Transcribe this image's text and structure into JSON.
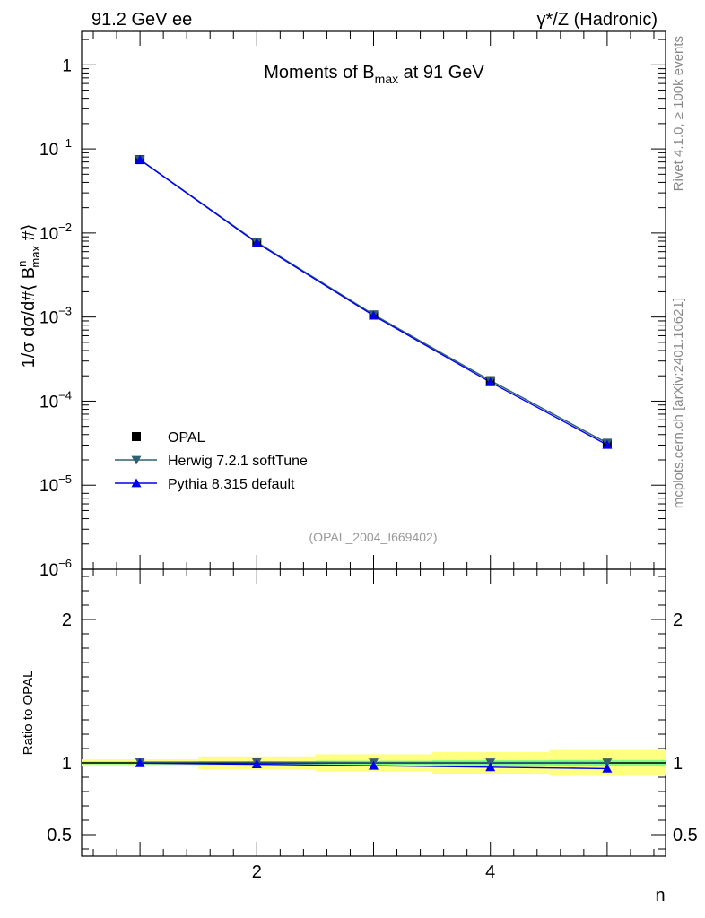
{
  "header": {
    "left": "91.2 GeV ee",
    "right": "γ*/Z (Hadronic)"
  },
  "side_labels": {
    "rivet": "Rivet 4.1.0, ≥ 100k events",
    "mcplots": "mcplots.cern.ch [arXiv:2401.10621]"
  },
  "colors": {
    "data": "#000000",
    "herwig": "#2e6070",
    "pythia": "#0000ee",
    "band_inner": "#7fff7f",
    "band_outer": "#ffff80"
  },
  "chart_data": [
    {
      "type": "line",
      "panel": "main",
      "title_parts": {
        "pre": "Moments of B",
        "sub": "max",
        "post": " at 91 GeV"
      },
      "ylabel": "1/σ  dσ/d#⟨ B^n_max #⟩",
      "ylabel_parts": {
        "pre": "1/σ  dσ/d#⟨ B",
        "sup": "n",
        "sub": "max",
        "post": " #⟩"
      },
      "watermark": "(OPAL_2004_I669402)",
      "yscale": "log",
      "ylim": [
        1e-06,
        2.5
      ],
      "xlim": [
        0.5,
        5.5
      ],
      "y_ticks": [
        {
          "value": 1,
          "label": "1",
          "exp": ""
        },
        {
          "value": 0.1,
          "label": "10",
          "exp": "−1"
        },
        {
          "value": 0.01,
          "label": "10",
          "exp": "−2"
        },
        {
          "value": 0.001,
          "label": "10",
          "exp": "−3"
        },
        {
          "value": 0.0001,
          "label": "10",
          "exp": "−4"
        },
        {
          "value": 1e-05,
          "label": "10",
          "exp": "−5"
        },
        {
          "value": 1e-06,
          "label": "10",
          "exp": "−6"
        }
      ],
      "x": [
        1,
        2,
        3,
        4,
        5
      ],
      "series": [
        {
          "name": "OPAL",
          "key": "data",
          "values": [
            0.0745,
            0.0077,
            0.00106,
            0.000175,
            3.15e-05
          ]
        },
        {
          "name": "Herwig 7.2.1 softTune",
          "key": "herwig",
          "values": [
            0.0748,
            0.00778,
            0.00107,
            0.000176,
            3.18e-05
          ]
        },
        {
          "name": "Pythia 8.315 default",
          "key": "pythia",
          "values": [
            0.0742,
            0.00762,
            0.00104,
            0.000168,
            3.02e-05
          ]
        }
      ],
      "legend_position": "bottom-left"
    },
    {
      "type": "line",
      "panel": "ratio",
      "ylabel": "Ratio to OPAL",
      "xlabel": "n",
      "ylim": [
        0.35,
        2.35
      ],
      "xlim": [
        0.5,
        5.5
      ],
      "y_tick_values": [
        0.5,
        1,
        2
      ],
      "y_tick_labels": [
        "0.5",
        "1",
        "2"
      ],
      "x_tick_values": [
        2,
        4
      ],
      "x_tick_labels": [
        "2",
        "4"
      ],
      "x": [
        1,
        2,
        3,
        4,
        5
      ],
      "band_inner": [
        0.01,
        0.012,
        0.015,
        0.018,
        0.02
      ],
      "band_outer": [
        0.025,
        0.045,
        0.06,
        0.075,
        0.09
      ],
      "series": [
        {
          "name": "Herwig 7.2.1 softTune",
          "key": "herwig",
          "values": [
            1.005,
            1.005,
            1.003,
            1.003,
            1.003
          ]
        },
        {
          "name": "Pythia 8.315 default",
          "key": "pythia",
          "values": [
            0.998,
            0.99,
            0.98,
            0.97,
            0.96
          ]
        }
      ]
    }
  ]
}
